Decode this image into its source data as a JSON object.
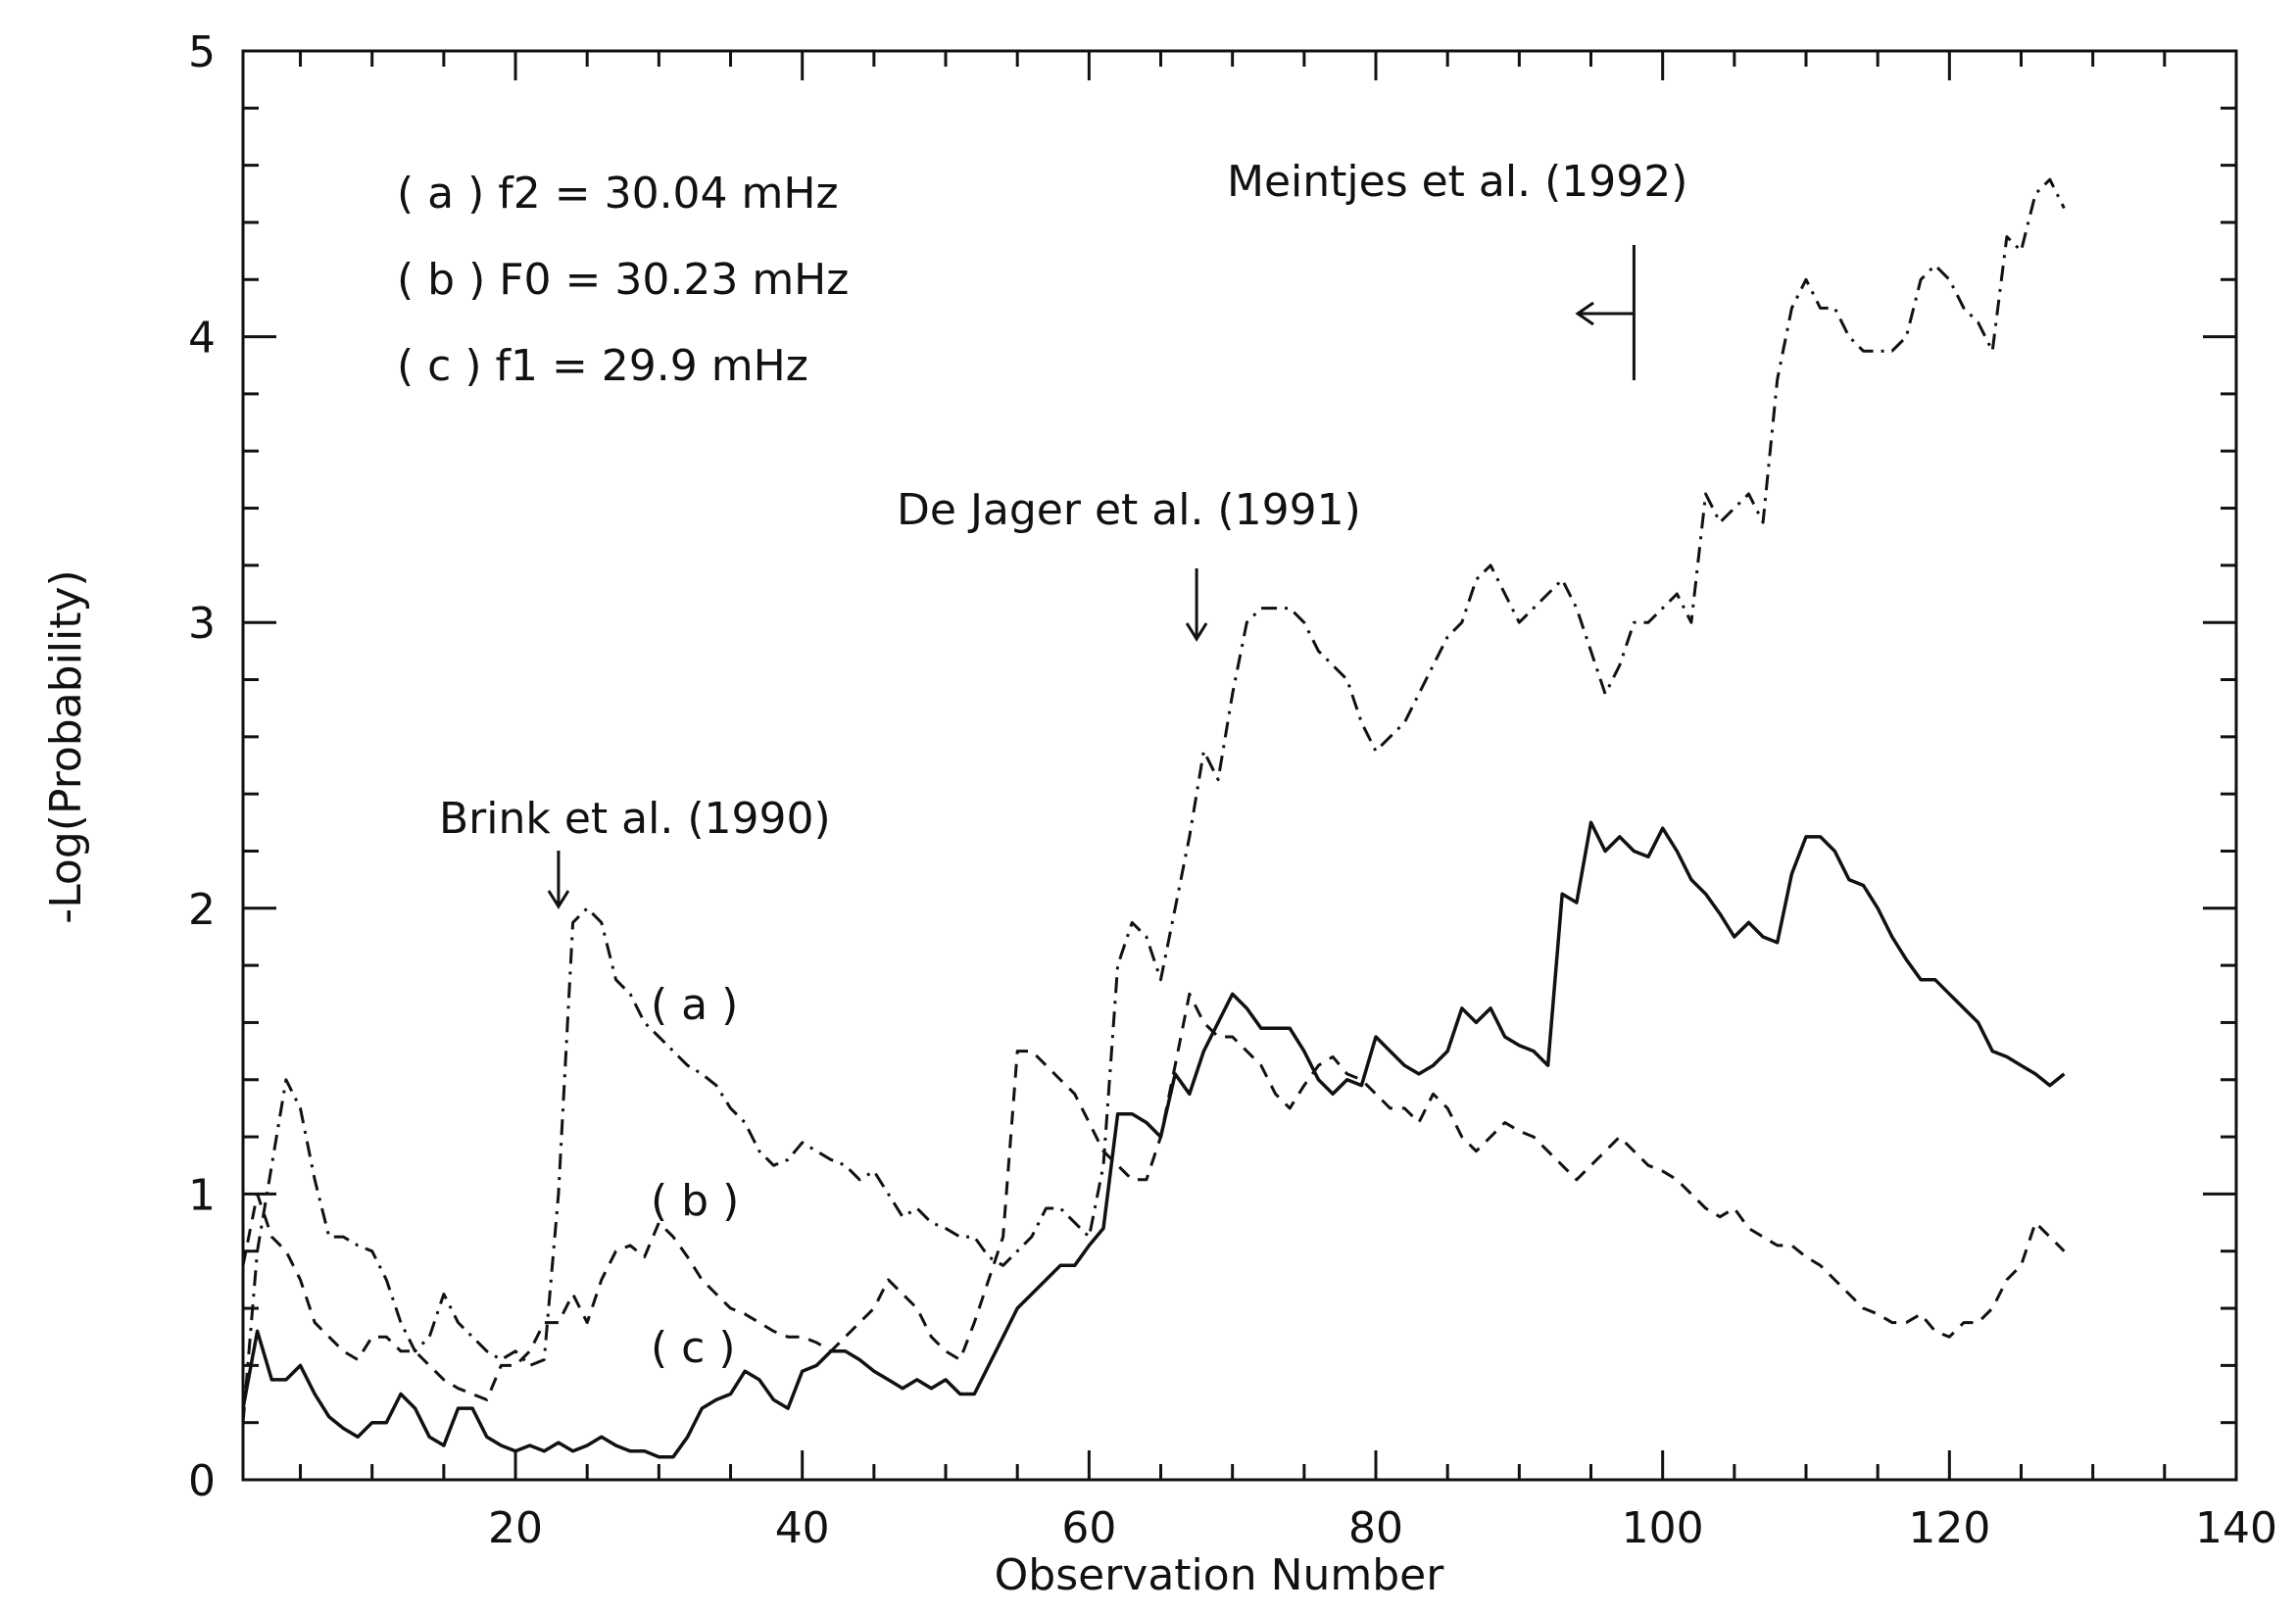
{
  "chart_data": {
    "type": "line",
    "title": "",
    "xlabel": "Observation Number",
    "ylabel": "-Log(Probability)",
    "xlim": [
      1,
      140
    ],
    "ylim": [
      0,
      5
    ],
    "grid": false,
    "x_ticks": [
      20,
      40,
      60,
      80,
      100,
      120,
      140
    ],
    "y_ticks": [
      0,
      1,
      2,
      3,
      4,
      5
    ],
    "legend_lines": [
      "( a ) f2 = 30.04 mHz",
      "( b ) F0 = 30.23 mHz",
      "( c ) f1 = 29.9 mHz"
    ],
    "series": [
      {
        "label": "( a )",
        "style": "dash-dot",
        "x": [
          1,
          2,
          3,
          4,
          5,
          6,
          7,
          8,
          9,
          10,
          11,
          12,
          13,
          14,
          15,
          16,
          17,
          18,
          19,
          20,
          21,
          22,
          23,
          24,
          25,
          26,
          27,
          28,
          29,
          30,
          31,
          32,
          33,
          34,
          35,
          36,
          37,
          38,
          39,
          40,
          41,
          42,
          43,
          44,
          45,
          46,
          47,
          48,
          49,
          50,
          51,
          52,
          53,
          54,
          55,
          56,
          57,
          58,
          59,
          60,
          61,
          62,
          63,
          64,
          65,
          66,
          67,
          68,
          69,
          70,
          71,
          72,
          73,
          74,
          75,
          76,
          77,
          78,
          79,
          80,
          81,
          82,
          83,
          84,
          85,
          86,
          87,
          88,
          89,
          90,
          91,
          92,
          93,
          94,
          95,
          96,
          97,
          98,
          99,
          100,
          101,
          102,
          103,
          104,
          105,
          106,
          107,
          108,
          109,
          110,
          111,
          112,
          113,
          114,
          115,
          116,
          117,
          118,
          119,
          120,
          121,
          122,
          123,
          124,
          125,
          126,
          127,
          128
        ],
        "y": [
          0.2,
          0.8,
          1.1,
          1.4,
          1.3,
          1.05,
          0.85,
          0.85,
          0.82,
          0.8,
          0.7,
          0.55,
          0.45,
          0.5,
          0.65,
          0.55,
          0.5,
          0.45,
          0.42,
          0.45,
          0.4,
          0.42,
          1.0,
          1.95,
          2.0,
          1.95,
          1.75,
          1.7,
          1.6,
          1.55,
          1.5,
          1.45,
          1.42,
          1.38,
          1.3,
          1.25,
          1.15,
          1.1,
          1.12,
          1.18,
          1.15,
          1.12,
          1.1,
          1.05,
          1.08,
          1.0,
          0.92,
          0.95,
          0.9,
          0.88,
          0.85,
          0.85,
          0.78,
          0.75,
          0.8,
          0.85,
          0.95,
          0.95,
          0.9,
          0.85,
          1.1,
          1.8,
          1.95,
          1.9,
          1.75,
          2.0,
          2.25,
          2.55,
          2.45,
          2.75,
          3.0,
          3.05,
          3.05,
          3.05,
          3.0,
          2.9,
          2.85,
          2.8,
          2.65,
          2.55,
          2.6,
          2.65,
          2.75,
          2.85,
          2.95,
          3.0,
          3.15,
          3.2,
          3.1,
          3.0,
          3.05,
          3.1,
          3.15,
          3.05,
          2.9,
          2.75,
          2.85,
          3.0,
          3.0,
          3.05,
          3.1,
          3.0,
          3.45,
          3.35,
          3.4,
          3.45,
          3.35,
          3.85,
          4.1,
          4.2,
          4.1,
          4.1,
          4.0,
          3.95,
          3.95,
          3.95,
          4.0,
          4.2,
          4.25,
          4.2,
          4.1,
          4.05,
          3.95,
          4.35,
          4.3,
          4.5,
          4.55,
          4.45
        ]
      },
      {
        "label": "( b )",
        "style": "dashed",
        "x": [
          1,
          2,
          3,
          4,
          5,
          6,
          7,
          8,
          9,
          10,
          11,
          12,
          13,
          14,
          15,
          16,
          17,
          18,
          19,
          20,
          21,
          22,
          23,
          24,
          25,
          26,
          27,
          28,
          29,
          30,
          31,
          32,
          33,
          34,
          35,
          36,
          37,
          38,
          39,
          40,
          41,
          42,
          43,
          44,
          45,
          46,
          47,
          48,
          49,
          50,
          51,
          52,
          53,
          54,
          55,
          56,
          57,
          58,
          59,
          60,
          61,
          62,
          63,
          64,
          65,
          66,
          67,
          68,
          69,
          70,
          71,
          72,
          73,
          74,
          75,
          76,
          77,
          78,
          79,
          80,
          81,
          82,
          83,
          84,
          85,
          86,
          87,
          88,
          89,
          90,
          91,
          92,
          93,
          94,
          95,
          96,
          97,
          98,
          99,
          100,
          101,
          102,
          103,
          104,
          105,
          106,
          107,
          108,
          109,
          110,
          111,
          112,
          113,
          114,
          115,
          116,
          117,
          118,
          119,
          120,
          121,
          122,
          123,
          124,
          125,
          126,
          127,
          128
        ],
        "y": [
          0.75,
          1.0,
          0.85,
          0.8,
          0.7,
          0.55,
          0.5,
          0.45,
          0.42,
          0.5,
          0.5,
          0.45,
          0.45,
          0.4,
          0.35,
          0.32,
          0.3,
          0.28,
          0.4,
          0.4,
          0.45,
          0.55,
          0.55,
          0.65,
          0.55,
          0.7,
          0.8,
          0.82,
          0.78,
          0.9,
          0.85,
          0.78,
          0.7,
          0.65,
          0.6,
          0.58,
          0.55,
          0.52,
          0.5,
          0.5,
          0.48,
          0.45,
          0.5,
          0.55,
          0.6,
          0.7,
          0.65,
          0.6,
          0.5,
          0.45,
          0.42,
          0.55,
          0.7,
          0.85,
          1.5,
          1.5,
          1.45,
          1.4,
          1.35,
          1.25,
          1.15,
          1.1,
          1.05,
          1.05,
          1.2,
          1.45,
          1.7,
          1.6,
          1.55,
          1.55,
          1.5,
          1.45,
          1.35,
          1.3,
          1.38,
          1.45,
          1.48,
          1.42,
          1.4,
          1.35,
          1.3,
          1.3,
          1.25,
          1.35,
          1.3,
          1.2,
          1.15,
          1.2,
          1.25,
          1.22,
          1.2,
          1.15,
          1.1,
          1.05,
          1.1,
          1.15,
          1.2,
          1.15,
          1.1,
          1.08,
          1.05,
          1.0,
          0.95,
          0.92,
          0.95,
          0.88,
          0.85,
          0.82,
          0.82,
          0.78,
          0.75,
          0.7,
          0.65,
          0.6,
          0.58,
          0.55,
          0.55,
          0.58,
          0.52,
          0.5,
          0.55,
          0.55,
          0.6,
          0.7,
          0.75,
          0.9,
          0.85,
          0.8
        ]
      },
      {
        "label": "( c )",
        "style": "solid",
        "x": [
          1,
          2,
          3,
          4,
          5,
          6,
          7,
          8,
          9,
          10,
          11,
          12,
          13,
          14,
          15,
          16,
          17,
          18,
          19,
          20,
          21,
          22,
          23,
          24,
          25,
          26,
          27,
          28,
          29,
          30,
          31,
          32,
          33,
          34,
          35,
          36,
          37,
          38,
          39,
          40,
          41,
          42,
          43,
          44,
          45,
          46,
          47,
          48,
          49,
          50,
          51,
          52,
          53,
          54,
          55,
          56,
          57,
          58,
          59,
          60,
          61,
          62,
          63,
          64,
          65,
          66,
          67,
          68,
          69,
          70,
          71,
          72,
          73,
          74,
          75,
          76,
          77,
          78,
          79,
          80,
          81,
          82,
          83,
          84,
          85,
          86,
          87,
          88,
          89,
          90,
          91,
          92,
          93,
          94,
          95,
          96,
          97,
          98,
          99,
          100,
          101,
          102,
          103,
          104,
          105,
          106,
          107,
          108,
          109,
          110,
          111,
          112,
          113,
          114,
          115,
          116,
          117,
          118,
          119,
          120,
          121,
          122,
          123,
          124,
          125,
          126,
          127,
          128
        ],
        "y": [
          0.25,
          0.52,
          0.35,
          0.35,
          0.4,
          0.3,
          0.22,
          0.18,
          0.15,
          0.2,
          0.2,
          0.3,
          0.25,
          0.15,
          0.12,
          0.25,
          0.25,
          0.15,
          0.12,
          0.1,
          0.12,
          0.1,
          0.13,
          0.1,
          0.12,
          0.15,
          0.12,
          0.1,
          0.1,
          0.08,
          0.08,
          0.15,
          0.25,
          0.28,
          0.3,
          0.38,
          0.35,
          0.28,
          0.25,
          0.38,
          0.4,
          0.45,
          0.45,
          0.42,
          0.38,
          0.35,
          0.32,
          0.35,
          0.32,
          0.35,
          0.3,
          0.3,
          0.4,
          0.5,
          0.6,
          0.65,
          0.7,
          0.75,
          0.75,
          0.82,
          0.88,
          1.28,
          1.28,
          1.25,
          1.2,
          1.42,
          1.35,
          1.5,
          1.6,
          1.7,
          1.65,
          1.58,
          1.58,
          1.58,
          1.5,
          1.4,
          1.35,
          1.4,
          1.38,
          1.55,
          1.5,
          1.45,
          1.42,
          1.45,
          1.5,
          1.65,
          1.6,
          1.65,
          1.55,
          1.52,
          1.5,
          1.45,
          2.05,
          2.02,
          2.3,
          2.2,
          2.25,
          2.2,
          2.18,
          2.28,
          2.2,
          2.1,
          2.05,
          1.98,
          1.9,
          1.95,
          1.9,
          1.88,
          2.12,
          2.25,
          2.25,
          2.2,
          2.1,
          2.08,
          2.0,
          1.9,
          1.82,
          1.75,
          1.75,
          1.7,
          1.65,
          1.6,
          1.5,
          1.48,
          1.45,
          1.42,
          1.38,
          1.42
        ]
      }
    ],
    "annotations": [
      {
        "text": "Meintjes et al. (1992)",
        "x": 98,
        "arrow": "left"
      },
      {
        "text": "De Jager et al. (1991)",
        "x": 67.5,
        "arrow": "down"
      },
      {
        "text": "Brink et al. (1990)",
        "x": 23,
        "arrow": "down"
      }
    ],
    "series_labels": [
      "( a )",
      "( b )",
      "( c )"
    ]
  }
}
